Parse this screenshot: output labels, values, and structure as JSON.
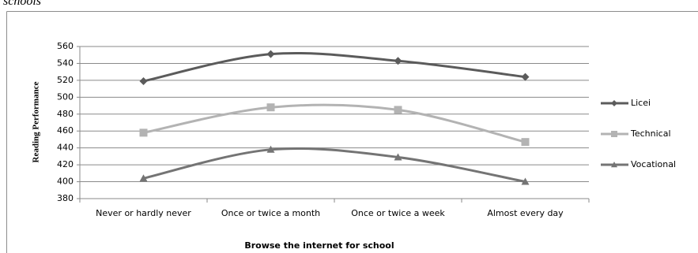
{
  "chart_data": {
    "type": "line",
    "caption": "schools",
    "x_label": "Browse the internet for school",
    "y_label": "Reading Performance",
    "categories": [
      "Never or hardly never",
      "Once or twice a month",
      "Once or twice a week",
      "Almost every day"
    ],
    "series": [
      {
        "name": "Licei",
        "color": "#5b5b5b",
        "marker": "diamond",
        "values": [
          519,
          551,
          543,
          524
        ]
      },
      {
        "name": "Technical",
        "color": "#b3b3b3",
        "marker": "square",
        "values": [
          458,
          488,
          485,
          447
        ]
      },
      {
        "name": "Vocational",
        "color": "#747474",
        "marker": "triangle",
        "values": [
          404,
          438,
          429,
          400
        ]
      }
    ],
    "ylim": [
      380,
      560
    ],
    "yticks": [
      380,
      400,
      420,
      440,
      460,
      480,
      500,
      520,
      540,
      560
    ],
    "grid": true,
    "legend": "right"
  }
}
